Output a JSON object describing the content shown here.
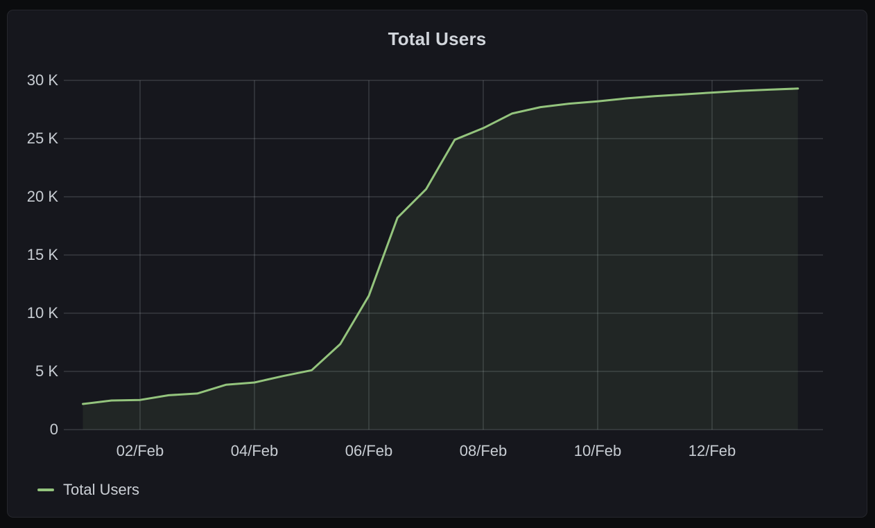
{
  "panel": {
    "title": "Total Users"
  },
  "legend": {
    "items": [
      {
        "label": "Total Users",
        "color": "#94c47d"
      }
    ]
  },
  "theme": {
    "page_bg": "#0b0c0e",
    "panel_bg": "#16171d",
    "panel_border": "#26272d",
    "grid_color": "rgba(202,211,221,0.14)",
    "axis_text_color": "#c8cdd3",
    "title_color": "#d2d6dc",
    "line_color": "#94c47d",
    "fill_color": "rgba(148,196,125,0.09)"
  },
  "chart_data": {
    "type": "area",
    "title": "Total Users",
    "xlabel": "",
    "ylabel": "",
    "x_unit": "day of February",
    "ylim": [
      0,
      30000
    ],
    "xlim_days": [
      0.67,
      13.95
    ],
    "grid": true,
    "legend_position": "bottom-left",
    "y_ticks": [
      {
        "value": 0,
        "label": "0"
      },
      {
        "value": 5000,
        "label": "5 K"
      },
      {
        "value": 10000,
        "label": "10 K"
      },
      {
        "value": 15000,
        "label": "15 K"
      },
      {
        "value": 20000,
        "label": "20 K"
      },
      {
        "value": 25000,
        "label": "25 K"
      },
      {
        "value": 30000,
        "label": "30 K"
      }
    ],
    "x_ticks": [
      {
        "day": 2,
        "label": "02/Feb"
      },
      {
        "day": 4,
        "label": "04/Feb"
      },
      {
        "day": 6,
        "label": "06/Feb"
      },
      {
        "day": 8,
        "label": "08/Feb"
      },
      {
        "day": 10,
        "label": "10/Feb"
      },
      {
        "day": 12,
        "label": "12/Feb"
      }
    ],
    "series": [
      {
        "name": "Total Users",
        "color": "#94c47d",
        "points": [
          {
            "day": 1.0,
            "value": 2200
          },
          {
            "day": 1.5,
            "value": 2500
          },
          {
            "day": 2.0,
            "value": 2550
          },
          {
            "day": 2.5,
            "value": 2950
          },
          {
            "day": 3.0,
            "value": 3100
          },
          {
            "day": 3.5,
            "value": 3850
          },
          {
            "day": 4.0,
            "value": 4050
          },
          {
            "day": 4.5,
            "value": 4600
          },
          {
            "day": 5.0,
            "value": 5100
          },
          {
            "day": 5.5,
            "value": 7350
          },
          {
            "day": 6.0,
            "value": 11500
          },
          {
            "day": 6.5,
            "value": 18200
          },
          {
            "day": 7.0,
            "value": 20650
          },
          {
            "day": 7.5,
            "value": 24900
          },
          {
            "day": 8.0,
            "value": 25900
          },
          {
            "day": 8.5,
            "value": 27150
          },
          {
            "day": 9.0,
            "value": 27700
          },
          {
            "day": 9.5,
            "value": 28000
          },
          {
            "day": 10.0,
            "value": 28200
          },
          {
            "day": 10.5,
            "value": 28450
          },
          {
            "day": 11.0,
            "value": 28650
          },
          {
            "day": 11.5,
            "value": 28800
          },
          {
            "day": 12.0,
            "value": 28950
          },
          {
            "day": 12.5,
            "value": 29100
          },
          {
            "day": 13.0,
            "value": 29200
          },
          {
            "day": 13.5,
            "value": 29300
          }
        ]
      }
    ]
  }
}
